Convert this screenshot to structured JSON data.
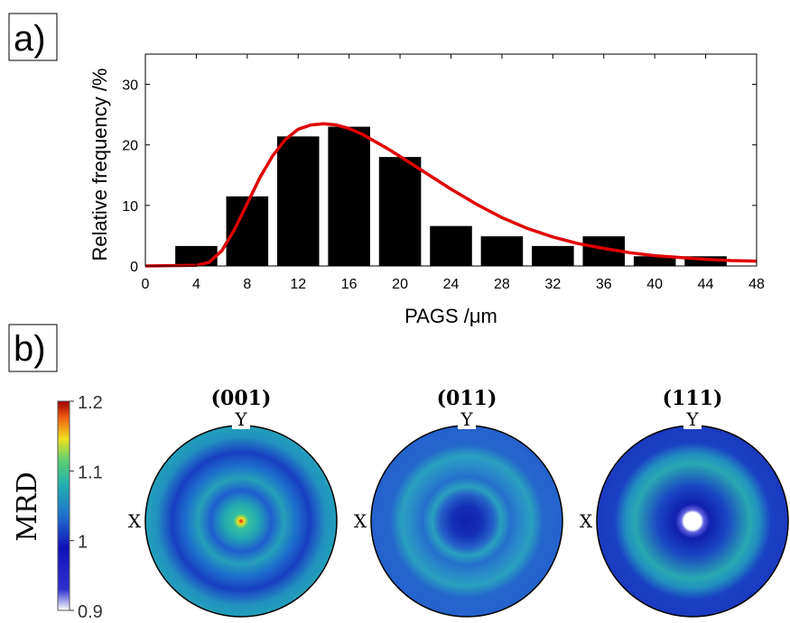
{
  "panels": {
    "a_label": "a)",
    "b_label": "b)"
  },
  "chart_data": [
    {
      "type": "bar",
      "xlabel": "PAGS /μm",
      "ylabel": "Relative frequency /%",
      "xlim": [
        0,
        48
      ],
      "ylim": [
        0,
        35
      ],
      "xticks": [
        0,
        4,
        8,
        12,
        16,
        20,
        24,
        28,
        32,
        36,
        40,
        44,
        48
      ],
      "yticks": [
        0,
        10,
        20,
        30
      ],
      "bar_color": "#000000",
      "bar_centers": [
        4,
        8,
        12,
        16,
        20,
        24,
        28,
        32,
        36,
        40,
        44
      ],
      "values": [
        3.3,
        11.5,
        21.4,
        23.0,
        18.0,
        6.6,
        4.9,
        3.3,
        4.9,
        1.6,
        1.6
      ],
      "fit_curve": {
        "type": "line",
        "color": "#e00000",
        "x": [
          0,
          4,
          5,
          6,
          7,
          8,
          9,
          10,
          11,
          12,
          13,
          14,
          15,
          16,
          17,
          18,
          19,
          20,
          22,
          24,
          26,
          28,
          30,
          32,
          34,
          36,
          38,
          40,
          42,
          44,
          46,
          48
        ],
        "y": [
          0,
          0.1,
          0.6,
          2.5,
          6.0,
          10.3,
          14.6,
          18.2,
          20.9,
          22.6,
          23.3,
          23.5,
          23.3,
          22.7,
          21.8,
          20.6,
          19.4,
          18.1,
          15.4,
          12.7,
          10.2,
          8.0,
          6.2,
          4.8,
          3.7,
          2.9,
          2.2,
          1.7,
          1.4,
          1.1,
          0.9,
          0.8
        ]
      }
    },
    {
      "type": "heatmap",
      "subtype": "pole-figures",
      "colorbar": {
        "title": "MRD",
        "range": [
          0.9,
          1.2
        ],
        "tick_labels": [
          "1.2",
          "1.1",
          "1",
          "0.9"
        ],
        "tick_values": [
          1.2,
          1.1,
          1.0,
          0.9
        ],
        "colormap": [
          "#ffffff",
          "#1010c8",
          "#1f7fd0",
          "#20b8a8",
          "#f0e020",
          "#e01010",
          "#a00000"
        ]
      },
      "figures": [
        {
          "title": "(001)",
          "x_label": "X",
          "y_label": "Y",
          "center_value": 1.2,
          "ring_value": 1.04,
          "background_value": 1.03,
          "trough_value": 0.99
        },
        {
          "title": "(011)",
          "x_label": "X",
          "y_label": "Y",
          "center_value": 0.99,
          "ring_value": 1.03,
          "background_value": 1.0,
          "trough_value": 1.0
        },
        {
          "title": "(111)",
          "x_label": "X",
          "y_label": "Y",
          "center_value": 0.9,
          "ring_value": 1.05,
          "background_value": 0.99,
          "trough_value": 0.98
        }
      ]
    }
  ]
}
